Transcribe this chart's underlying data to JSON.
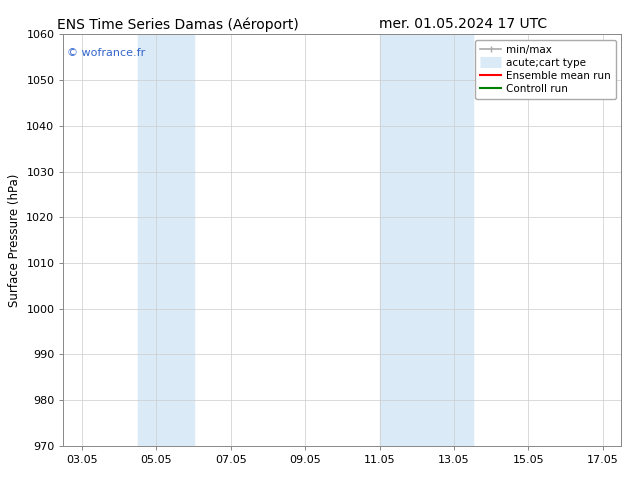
{
  "title_left": "ENS Time Series Damas (Aéroport)",
  "title_right": "mer. 01.05.2024 17 UTC",
  "ylabel": "Surface Pressure (hPa)",
  "ylim": [
    970,
    1060
  ],
  "yticks": [
    970,
    980,
    990,
    1000,
    1010,
    1020,
    1030,
    1040,
    1050,
    1060
  ],
  "xtick_labels": [
    "03.05",
    "05.05",
    "07.05",
    "09.05",
    "11.05",
    "13.05",
    "15.05",
    "17.05"
  ],
  "xtick_positions": [
    3,
    5,
    7,
    9,
    11,
    13,
    15,
    17
  ],
  "xlim": [
    2.5,
    17.5
  ],
  "shaded_bands": [
    {
      "x_start": 4.5,
      "x_end": 6.0
    },
    {
      "x_start": 11.0,
      "x_end": 12.5
    },
    {
      "x_start": 12.5,
      "x_end": 13.5
    }
  ],
  "shaded_color": "#dbeaf7",
  "watermark_text": "© wofrance.fr",
  "watermark_color": "#3366cc",
  "bg_color": "#ffffff",
  "grid_color": "#cccccc",
  "title_fontsize": 10,
  "tick_fontsize": 8,
  "ylabel_fontsize": 8.5,
  "legend_fontsize": 7.5
}
